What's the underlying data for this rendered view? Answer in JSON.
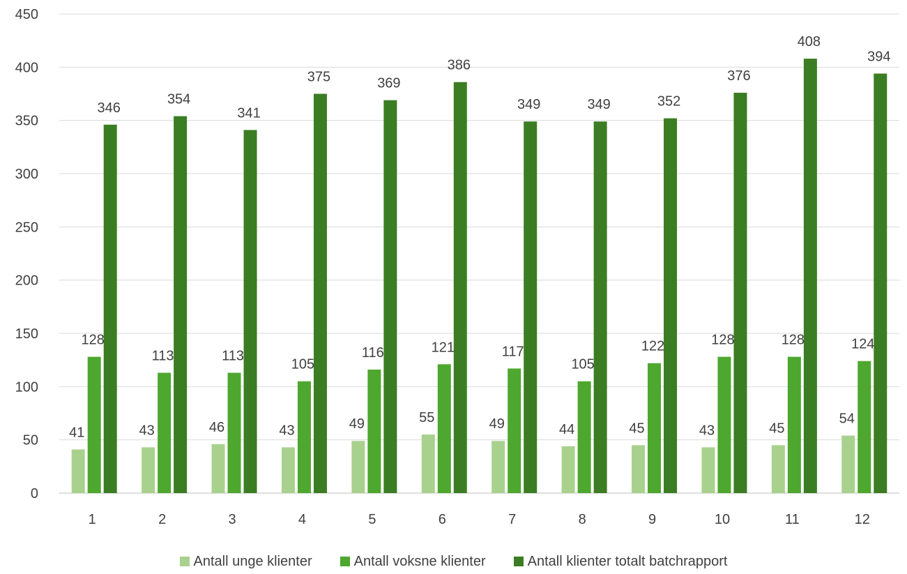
{
  "chart_data": {
    "type": "bar",
    "categories": [
      "1",
      "2",
      "3",
      "4",
      "5",
      "6",
      "7",
      "8",
      "9",
      "10",
      "11",
      "12"
    ],
    "series": [
      {
        "name": "Antall unge klienter",
        "color": "#a9d18e",
        "values": [
          41,
          43,
          46,
          43,
          49,
          55,
          49,
          44,
          45,
          43,
          45,
          54
        ]
      },
      {
        "name": "Antall voksne klienter",
        "color": "#4ea72e",
        "values": [
          128,
          113,
          113,
          105,
          116,
          121,
          117,
          105,
          122,
          128,
          128,
          124
        ]
      },
      {
        "name": "Antall klienter totalt batchrapport",
        "color": "#3b7d23",
        "values": [
          346,
          354,
          341,
          375,
          369,
          386,
          349,
          349,
          352,
          376,
          408,
          394
        ]
      }
    ],
    "yticks": [
      "0",
      "50",
      "100",
      "150",
      "200",
      "250",
      "300",
      "350",
      "400",
      "450"
    ],
    "ylim": [
      0,
      450
    ],
    "grid": true,
    "legend_position": "bottom",
    "data_labels": true
  }
}
